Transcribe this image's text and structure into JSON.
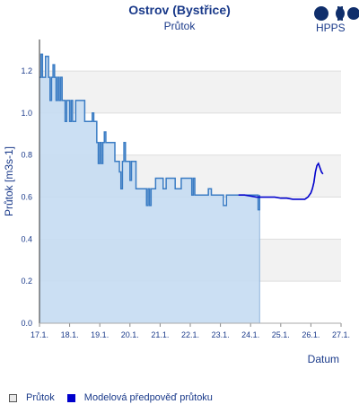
{
  "chart_data": {
    "type": "line",
    "title": "Ostrov (Bystřice)",
    "subtitle": "Průtok",
    "xlabel": "Datum",
    "ylabel": "Průtok [m3s-1]",
    "ylim": [
      0,
      1.35
    ],
    "yticks": [
      "0.0",
      "0.2",
      "0.4",
      "0.6",
      "0.8",
      "1.0",
      "1.2"
    ],
    "xticks": [
      "17.1.",
      "18.1.",
      "19.1.",
      "20.1.",
      "21.1.",
      "22.1.",
      "23.1.",
      "24.1.",
      "25.1.",
      "26.1.",
      "27.1."
    ],
    "xlim": [
      0,
      10
    ],
    "grid": true,
    "legend_position": "bottom-left",
    "series": [
      {
        "name": "Průtok",
        "color": "#3a7cc4",
        "fill": "#c5dcf2",
        "x": [
          0,
          0.05,
          0.1,
          0.15,
          0.2,
          0.3,
          0.35,
          0.4,
          0.45,
          0.5,
          0.55,
          0.6,
          0.65,
          0.7,
          0.75,
          0.8,
          0.85,
          0.9,
          0.95,
          1.0,
          1.05,
          1.1,
          1.2,
          1.3,
          1.4,
          1.5,
          1.6,
          1.7,
          1.75,
          1.8,
          1.85,
          1.9,
          1.95,
          2.0,
          2.05,
          2.1,
          2.15,
          2.2,
          2.3,
          2.4,
          2.5,
          2.6,
          2.65,
          2.7,
          2.75,
          2.8,
          2.85,
          2.9,
          2.95,
          3.0,
          3.05,
          3.1,
          3.2,
          3.3,
          3.4,
          3.5,
          3.55,
          3.6,
          3.65,
          3.7,
          3.75,
          3.8,
          3.85,
          3.9,
          4.0,
          4.1,
          4.2,
          4.3,
          4.4,
          4.5,
          4.6,
          4.7,
          4.8,
          4.9,
          5.0,
          5.05,
          5.1,
          5.15,
          5.2,
          5.3,
          5.4,
          5.5,
          5.6,
          5.7,
          5.8,
          5.9,
          6.0,
          6.1,
          6.2,
          6.3,
          6.4,
          6.5,
          6.6,
          6.7,
          6.8,
          6.9,
          7.0,
          7.1,
          7.2,
          7.25,
          7.3
        ],
        "y": [
          1.17,
          1.28,
          1.17,
          1.17,
          1.27,
          1.17,
          1.06,
          1.17,
          1.23,
          1.17,
          1.06,
          1.17,
          1.06,
          1.17,
          1.06,
          1.06,
          0.96,
          1.06,
          1.06,
          0.96,
          1.06,
          0.96,
          1.06,
          1.06,
          1.06,
          0.96,
          0.96,
          0.96,
          1.0,
          0.96,
          0.96,
          0.86,
          0.76,
          0.86,
          0.76,
          0.86,
          0.91,
          0.86,
          0.86,
          0.86,
          0.77,
          0.77,
          0.72,
          0.64,
          0.77,
          0.86,
          0.77,
          0.77,
          0.77,
          0.68,
          0.77,
          0.77,
          0.64,
          0.64,
          0.64,
          0.64,
          0.56,
          0.64,
          0.56,
          0.64,
          0.64,
          0.64,
          0.69,
          0.69,
          0.69,
          0.64,
          0.69,
          0.69,
          0.69,
          0.64,
          0.64,
          0.69,
          0.69,
          0.69,
          0.69,
          0.61,
          0.69,
          0.61,
          0.61,
          0.61,
          0.61,
          0.61,
          0.64,
          0.61,
          0.61,
          0.61,
          0.61,
          0.56,
          0.61,
          0.61,
          0.61,
          0.61,
          0.61,
          0.61,
          0.61,
          0.61,
          0.61,
          0.61,
          0.61,
          0.54,
          0.61
        ]
      },
      {
        "name": "Modelová předpověď průtoku",
        "color": "#0000cc",
        "x": [
          6.6,
          6.8,
          7.0,
          7.2,
          7.4,
          7.6,
          7.8,
          8.0,
          8.2,
          8.4,
          8.6,
          8.8,
          8.9,
          9.0,
          9.05,
          9.1,
          9.15,
          9.2,
          9.25,
          9.3,
          9.35,
          9.4
        ],
        "y": [
          0.61,
          0.61,
          0.605,
          0.6,
          0.6,
          0.6,
          0.6,
          0.595,
          0.595,
          0.59,
          0.59,
          0.59,
          0.6,
          0.62,
          0.64,
          0.67,
          0.72,
          0.75,
          0.76,
          0.74,
          0.72,
          0.71
        ]
      }
    ]
  },
  "logo": {
    "text": "HPPS"
  }
}
